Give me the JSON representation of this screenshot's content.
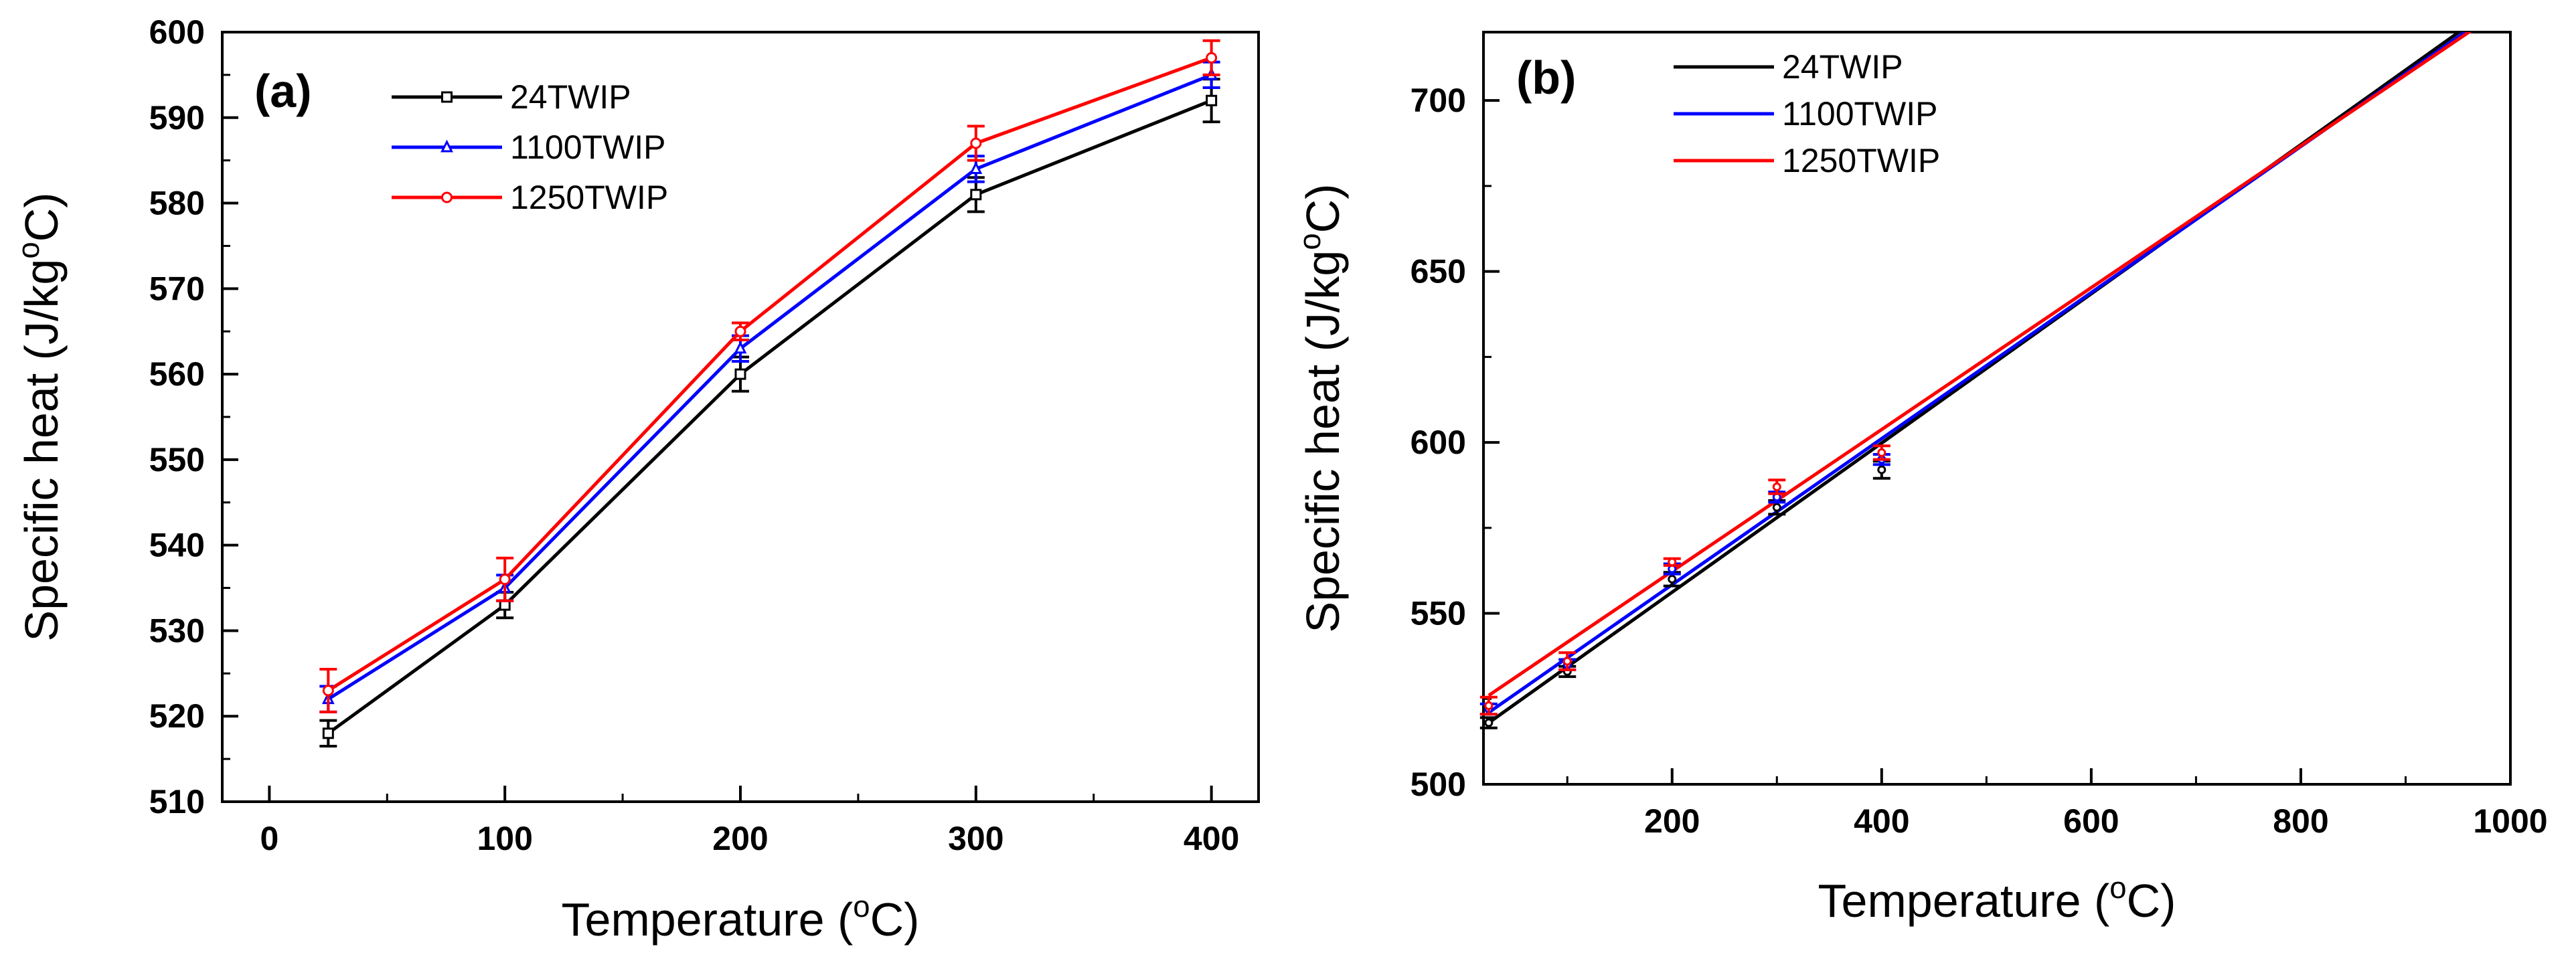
{
  "chart_data": [
    {
      "panel_label": "(a)",
      "type": "line",
      "markers": true,
      "xlabel": "Temperature",
      "xlabel_unit_open": " (",
      "xlabel_unit_sup": "o",
      "xlabel_unit_close": "C)",
      "ylabel": "Specific heat (J/kg",
      "ylabel_sup": "o",
      "ylabel_close": "C)",
      "xlim": [
        -20,
        420
      ],
      "ylim": [
        510,
        600
      ],
      "xticks": [
        0,
        100,
        200,
        300,
        400
      ],
      "yticks": [
        510,
        520,
        530,
        540,
        550,
        560,
        570,
        580,
        590,
        600
      ],
      "x_minor_step": 50,
      "y_minor_step": 5,
      "legend_position": "top-left",
      "series": [
        {
          "name": "24TWIP",
          "color": "#000000",
          "marker": "square",
          "x": [
            25,
            100,
            200,
            300,
            400
          ],
          "values": [
            518,
            533,
            560,
            581,
            592
          ],
          "errors": [
            1.5,
            1.5,
            2,
            2,
            2.5
          ]
        },
        {
          "name": "1100TWIP",
          "color": "#0000ff",
          "marker": "triangle",
          "x": [
            25,
            100,
            200,
            300,
            400
          ],
          "values": [
            522,
            535,
            563,
            584,
            595
          ],
          "errors": [
            1.5,
            1.5,
            1.5,
            1.5,
            1.5
          ]
        },
        {
          "name": "1250TWIP",
          "color": "#ff0000",
          "marker": "circle",
          "x": [
            25,
            100,
            200,
            300,
            400
          ],
          "values": [
            523,
            536,
            565,
            587,
            597
          ],
          "errors": [
            2.5,
            2.5,
            1,
            2,
            2
          ]
        }
      ]
    },
    {
      "panel_label": "(b)",
      "type": "line",
      "markers": false,
      "xlabel": "Temperature",
      "xlabel_unit_open": " (",
      "xlabel_unit_sup": "o",
      "xlabel_unit_close": "C)",
      "ylabel": "Specific heat (J/kg",
      "ylabel_sup": "o",
      "ylabel_close": "C)",
      "xlim": [
        20,
        1000
      ],
      "ylim": [
        500,
        720
      ],
      "xticks": [
        200,
        400,
        600,
        800,
        1000
      ],
      "yticks": [
        500,
        550,
        600,
        650,
        700
      ],
      "x_minor_step": 100,
      "y_minor_step": 25,
      "legend_position": "top-left",
      "series": [
        {
          "name": "24TWIP",
          "color": "#000000",
          "fit_x": [
            25,
            960
          ],
          "fit_y": [
            518,
            722
          ]
        },
        {
          "name": "1100TWIP",
          "color": "#0000ff",
          "fit_x": [
            25,
            966
          ],
          "fit_y": [
            521,
            722
          ]
        },
        {
          "name": "1250TWIP",
          "color": "#ff0000",
          "fit_x": [
            25,
            970
          ],
          "fit_y": [
            526,
            722
          ]
        }
      ],
      "measured_points": [
        {
          "name": "24TWIP",
          "color": "#000000",
          "x": [
            25,
            100,
            200,
            300,
            400
          ],
          "values": [
            518,
            533,
            560,
            581,
            592
          ],
          "errors": [
            1.5,
            1.5,
            2,
            2,
            2.5
          ]
        },
        {
          "name": "1100TWIP",
          "color": "#0000ff",
          "x": [
            25,
            100,
            200,
            300,
            400
          ],
          "values": [
            522,
            535,
            563,
            584,
            595
          ],
          "errors": [
            1.5,
            1.5,
            1.5,
            1.5,
            1.5
          ]
        },
        {
          "name": "1250TWIP",
          "color": "#ff0000",
          "x": [
            25,
            100,
            200,
            300,
            400
          ],
          "values": [
            523,
            536,
            565,
            587,
            597
          ],
          "errors": [
            2.5,
            2.5,
            1,
            2,
            2
          ]
        }
      ]
    }
  ]
}
